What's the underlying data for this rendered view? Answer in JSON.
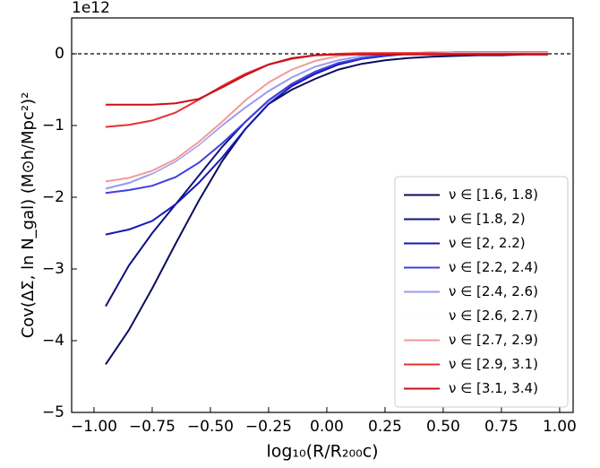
{
  "chart_data": {
    "type": "line",
    "offset_label": "1e12",
    "x_label": "log₁₀(R/R₂₀₀c)",
    "y_label": "Cov(ΔΣ, ln N_gal) (M⊙h/Mpc²)²",
    "x": [
      -0.95,
      -0.85,
      -0.75,
      -0.65,
      -0.55,
      -0.45,
      -0.35,
      -0.25,
      -0.15,
      -0.05,
      0.05,
      0.15,
      0.25,
      0.35,
      0.45,
      0.55,
      0.65,
      0.75,
      0.85,
      0.95
    ],
    "xlim": [
      -1.096,
      1.058
    ],
    "ylim": [
      -5,
      0.5
    ],
    "xticks": [
      {
        "value": -1,
        "label": "−1.00"
      },
      {
        "value": -0.75,
        "label": "−0.75"
      },
      {
        "value": -0.5,
        "label": "−0.50"
      },
      {
        "value": -0.25,
        "label": "−0.25"
      },
      {
        "value": 0,
        "label": "0.00"
      },
      {
        "value": 0.25,
        "label": "0.25"
      },
      {
        "value": 0.5,
        "label": "0.50"
      },
      {
        "value": 0.75,
        "label": "0.75"
      },
      {
        "value": 1,
        "label": "1.00"
      }
    ],
    "yticks": [
      {
        "value": -5,
        "label": "−5"
      },
      {
        "value": -4,
        "label": "−4"
      },
      {
        "value": -3,
        "label": "−3"
      },
      {
        "value": -2,
        "label": "−2"
      },
      {
        "value": -1,
        "label": "−1"
      },
      0
    ],
    "legend_position": "lower right",
    "series": [
      {
        "name": "ν ∈ [1.6, 1.8)",
        "color": "#0d0d5e",
        "values": [
          -4.33,
          -3.85,
          -3.27,
          -2.65,
          -2.05,
          -1.5,
          -1.05,
          -0.7,
          -0.5,
          -0.35,
          -0.22,
          -0.14,
          -0.09,
          -0.06,
          -0.04,
          -0.03,
          -0.02,
          -0.02,
          -0.01,
          -0.01
        ]
      },
      {
        "name": "ν ∈ [1.8, 2)",
        "color": "#0f127f",
        "values": [
          -3.52,
          -2.95,
          -2.5,
          -2.1,
          -1.7,
          -1.3,
          -0.95,
          -0.65,
          -0.42,
          -0.25,
          -0.13,
          -0.06,
          -0.02,
          0,
          0.01,
          0.02,
          0.02,
          0.02,
          0.02,
          0.02
        ]
      },
      {
        "name": "ν ∈ [2, 2.2)",
        "color": "#1515b8",
        "values": [
          -2.52,
          -2.45,
          -2.33,
          -2.1,
          -1.8,
          -1.45,
          -1.05,
          -0.7,
          -0.45,
          -0.28,
          -0.15,
          -0.07,
          -0.03,
          0,
          0.01,
          0.02,
          0.02,
          0.02,
          0.02,
          0.02
        ]
      },
      {
        "name": "ν ∈ [2.2, 2.4)",
        "color": "#3f3fe0",
        "values": [
          -1.94,
          -1.9,
          -1.84,
          -1.72,
          -1.52,
          -1.25,
          -0.95,
          -0.65,
          -0.42,
          -0.25,
          -0.13,
          -0.06,
          -0.02,
          0,
          0.01,
          0.02,
          0.02,
          0.02,
          0.02,
          0.02
        ]
      },
      {
        "name": "ν ∈ [2.4, 2.6)",
        "color": "#9999f0",
        "values": [
          -1.88,
          -1.8,
          -1.67,
          -1.5,
          -1.27,
          -1,
          -0.75,
          -0.52,
          -0.33,
          -0.18,
          -0.09,
          -0.03,
          0,
          0.01,
          0.02,
          0.02,
          0.02,
          0.02,
          0.02,
          0.02
        ]
      },
      {
        "name": "ν ∈ [2.6, 2.7)",
        "color": "#fdfdfd",
        "values": [
          -1.83,
          -1.76,
          -1.65,
          -1.48,
          -1.25,
          -0.97,
          -0.7,
          -0.46,
          -0.27,
          -0.14,
          -0.06,
          -0.01,
          0,
          0.01,
          0.01,
          0.01,
          0.01,
          0.01,
          0.01,
          0.01
        ]
      },
      {
        "name": "ν ∈ [2.7, 2.9)",
        "color": "#f29a9a",
        "values": [
          -1.78,
          -1.73,
          -1.63,
          -1.47,
          -1.23,
          -0.95,
          -0.65,
          -0.4,
          -0.22,
          -0.1,
          -0.03,
          0,
          0.01,
          0.01,
          0.01,
          0.01,
          0.01,
          0.01,
          0.01,
          0.01
        ]
      },
      {
        "name": "ν ∈ [2.9, 3.1)",
        "color": "#e83030",
        "values": [
          -1.02,
          -0.99,
          -0.93,
          -0.82,
          -0.64,
          -0.45,
          -0.28,
          -0.15,
          -0.07,
          -0.02,
          0,
          0.01,
          0.01,
          0.01,
          0.01,
          0,
          0,
          0,
          0,
          0
        ]
      },
      {
        "name": "ν ∈ [3.1, 3.4)",
        "color": "#c8101a",
        "values": [
          -0.71,
          -0.71,
          -0.71,
          -0.69,
          -0.63,
          -0.47,
          -0.3,
          -0.15,
          -0.06,
          -0.02,
          -0.01,
          -0.01,
          -0.01,
          -0.01,
          -0.01,
          -0.01,
          -0.01,
          -0.01,
          -0.01,
          -0.01
        ]
      }
    ]
  }
}
